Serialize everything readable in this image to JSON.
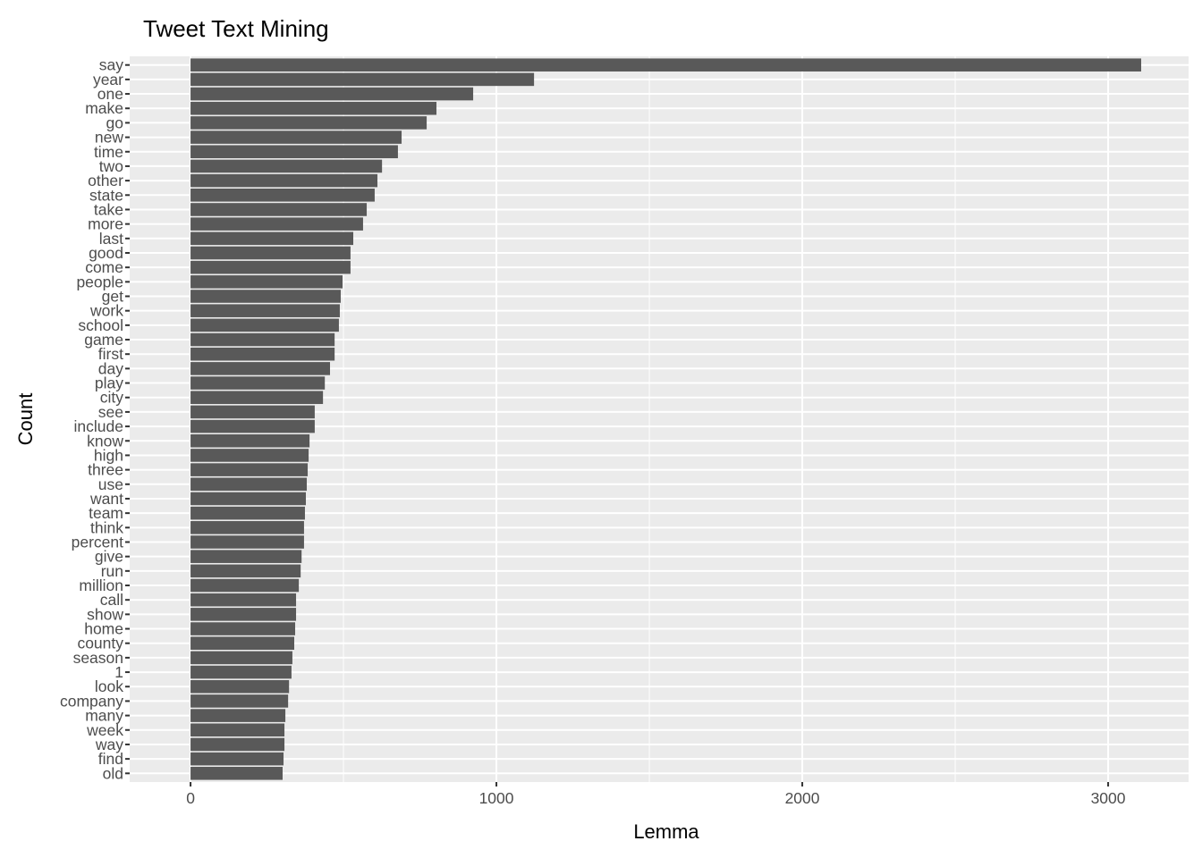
{
  "chart_data": {
    "type": "bar",
    "orientation": "horizontal",
    "title": "Tweet Text Mining",
    "xlabel": "Lemma",
    "ylabel": "Count",
    "xlim": [
      -199,
      3263
    ],
    "xticks": [
      0,
      1000,
      2000,
      3000
    ],
    "xtick_labels": [
      "0",
      "1000",
      "2000",
      "3000"
    ],
    "grid": true,
    "colors": {
      "bar": "#595959",
      "panel": "#ebebeb",
      "grid": "#ffffff"
    },
    "categories": [
      "say",
      "year",
      "one",
      "make",
      "go",
      "new",
      "time",
      "two",
      "other",
      "state",
      "take",
      "more",
      "last",
      "good",
      "come",
      "people",
      "get",
      "work",
      "school",
      "game",
      "first",
      "day",
      "play",
      "city",
      "see",
      "include",
      "know",
      "high",
      "three",
      "use",
      "want",
      "team",
      "think",
      "percent",
      "give",
      "run",
      "million",
      "call",
      "show",
      "home",
      "county",
      "season",
      "1",
      "look",
      "company",
      "many",
      "week",
      "way",
      "find",
      "old"
    ],
    "values": [
      3108,
      1123,
      924,
      804,
      772,
      690,
      678,
      626,
      611,
      602,
      576,
      564,
      532,
      523,
      523,
      497,
      491,
      488,
      485,
      471,
      471,
      456,
      439,
      433,
      406,
      406,
      389,
      386,
      383,
      380,
      377,
      374,
      371,
      371,
      363,
      360,
      354,
      345,
      345,
      342,
      339,
      333,
      330,
      322,
      319,
      310,
      307,
      307,
      304,
      301
    ]
  }
}
